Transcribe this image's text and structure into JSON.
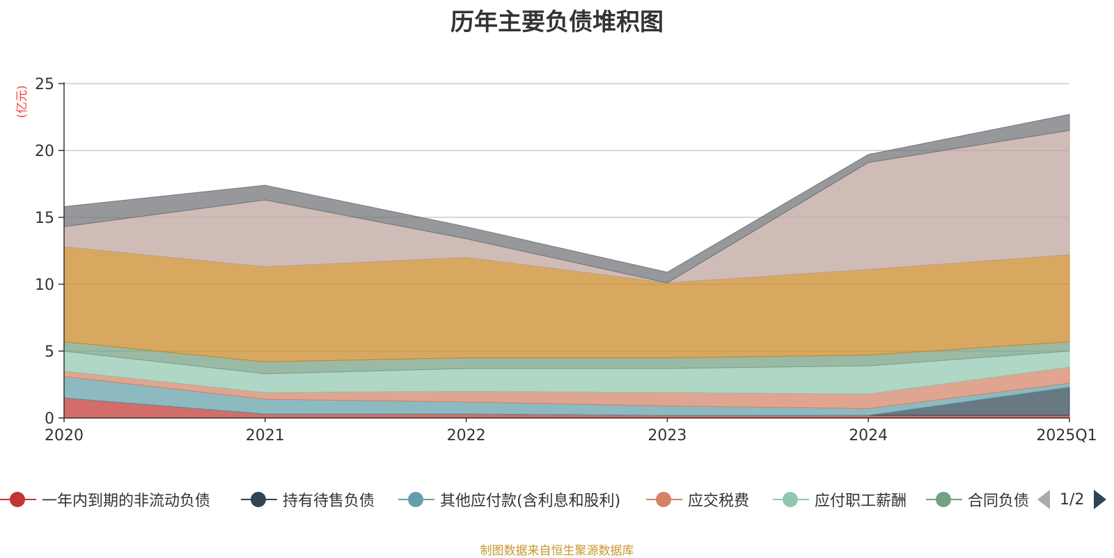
{
  "chart_data": {
    "type": "area",
    "stacked": true,
    "title": "历年主要负债堆积图",
    "ylabel": "(亿元)",
    "ylim": [
      0,
      25
    ],
    "yticks": [
      0,
      5,
      10,
      15,
      20,
      25
    ],
    "categories": [
      "2020",
      "2021",
      "2022",
      "2023",
      "2024",
      "2025Q1"
    ],
    "grid": true,
    "series": [
      {
        "name": "一年内到期的非流动负债",
        "color": "#c23531",
        "values": [
          1.5,
          0.3,
          0.3,
          0.2,
          0.2,
          0.2
        ]
      },
      {
        "name": "持有待售负债",
        "color": "#2f4554",
        "values": [
          0,
          0,
          0,
          0,
          0,
          2.1
        ]
      },
      {
        "name": "其他应付款(含利息和股利)",
        "color": "#61a0a8",
        "values": [
          1.6,
          1.1,
          0.9,
          0.7,
          0.5,
          0.3
        ]
      },
      {
        "name": "应交税费",
        "color": "#d48265",
        "values": [
          0.4,
          0.5,
          0.8,
          1.0,
          1.1,
          1.2
        ]
      },
      {
        "name": "应付职工薪酬",
        "color": "#91c7ae",
        "values": [
          1.5,
          1.4,
          1.7,
          1.8,
          2.1,
          1.2
        ]
      },
      {
        "name": "合同负债",
        "color": "#749f83",
        "values": [
          0.7,
          0.9,
          0.8,
          0.8,
          0.8,
          0.7
        ]
      },
      {
        "name": "",
        "color": "#ca8622",
        "values": [
          7.1,
          7.1,
          7.5,
          5.6,
          6.4,
          6.5
        ]
      },
      {
        "name": "",
        "color": "#bda29a",
        "values": [
          1.5,
          5.0,
          1.4,
          0.0,
          8.0,
          9.3
        ]
      },
      {
        "name": "",
        "color": "#6e7074",
        "values": [
          1.5,
          1.1,
          0.9,
          0.8,
          0.6,
          1.2
        ]
      }
    ]
  },
  "legend": {
    "items": [
      {
        "label": "一年内到期的非流动负债",
        "color": "#c23531"
      },
      {
        "label": "持有待售负债",
        "color": "#2f4554"
      },
      {
        "label": "其他应付款(含利息和股利)",
        "color": "#61a0a8"
      },
      {
        "label": "应交税费",
        "color": "#d48265"
      },
      {
        "label": "应付职工薪酬",
        "color": "#91c7ae"
      },
      {
        "label": "合同负债",
        "color": "#749f83"
      }
    ],
    "page": "1/2"
  },
  "source_text": "制图数据来自恒生聚源数据库"
}
